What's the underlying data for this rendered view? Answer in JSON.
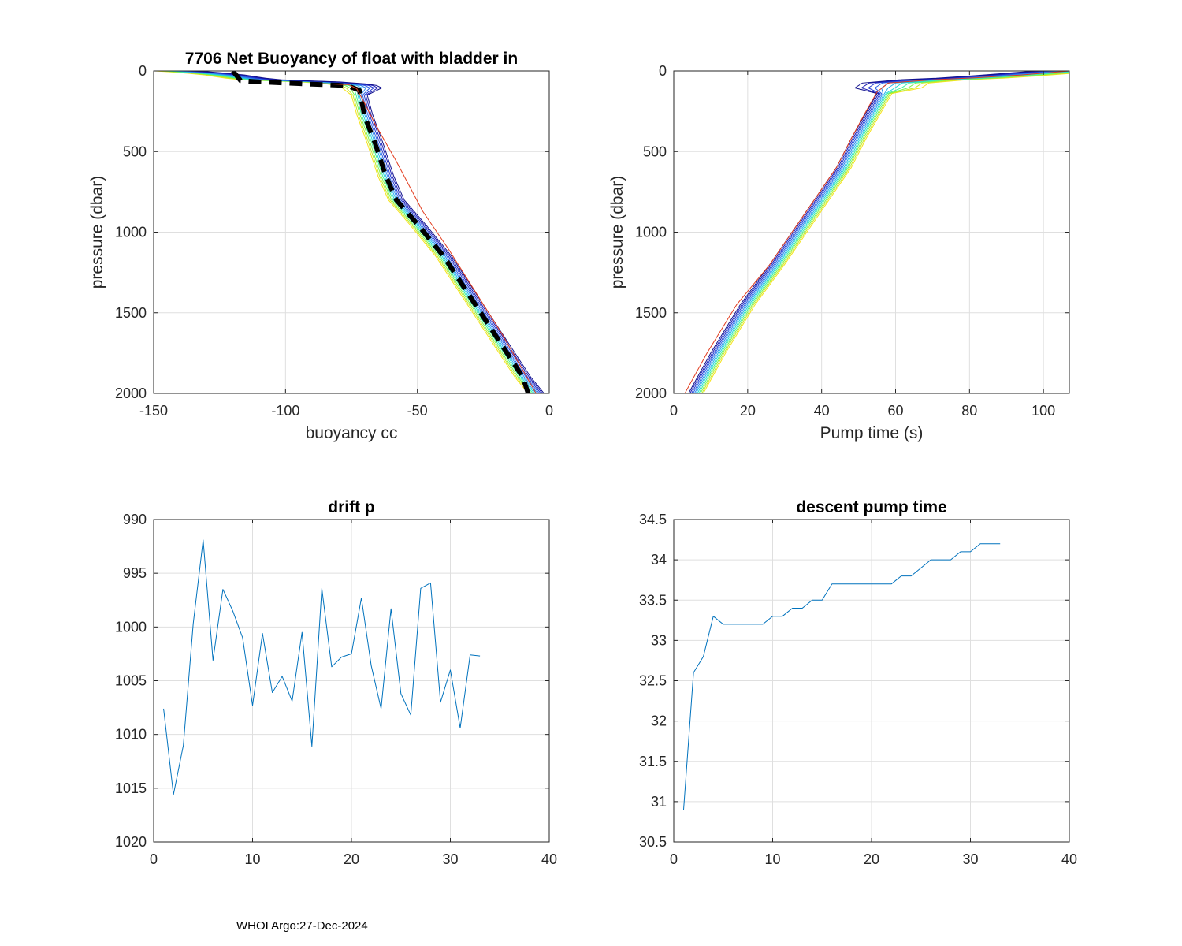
{
  "footer": "WHOI Argo:27-Dec-2024",
  "chart_data": [
    {
      "id": "buoyancy",
      "type": "line",
      "title": "7706 Net Buoyancy of float with bladder in",
      "xlabel": "buoyancy cc",
      "ylabel": "pressure (dbar)",
      "xlim": [
        -150,
        0
      ],
      "ylim": [
        0,
        2000
      ],
      "y_reversed": true,
      "xticks": [
        -150,
        -100,
        -50,
        0
      ],
      "yticks": [
        0,
        500,
        1000,
        1500,
        2000
      ],
      "grid": true,
      "base_profile": {
        "x": [
          -145,
          -140,
          -132,
          -126,
          -122,
          -118,
          -112,
          -100,
          -90,
          -80,
          -76,
          -74,
          -72,
          -70,
          -66,
          -62,
          -58,
          -50,
          -40,
          -30,
          -20,
          -10,
          -5
        ],
        "y": [
          0,
          5,
          15,
          25,
          35,
          45,
          55,
          62,
          68,
          80,
          90,
          105,
          150,
          270,
          450,
          650,
          800,
          950,
          1150,
          1400,
          1650,
          1900,
          2000
        ]
      },
      "series": [
        {
          "name": "mean (black dashed)",
          "color": "#000000",
          "style": "dashed",
          "width": 6,
          "x": [
            -120,
            -117,
            -110,
            -100,
            -90,
            -80,
            -76,
            -72,
            -70,
            -66,
            -62,
            -58,
            -50,
            -40,
            -30,
            -20,
            -10,
            -8
          ],
          "y": [
            0,
            60,
            68,
            75,
            82,
            88,
            95,
            120,
            280,
            450,
            650,
            800,
            950,
            1150,
            1400,
            1650,
            1900,
            2000
          ]
        },
        {
          "name": "profile red",
          "color": "#e23c1e",
          "style": "solid",
          "width": 1,
          "x": [
            -86,
            -76,
            -73,
            -70,
            -66,
            -58,
            -48,
            -38,
            -28,
            -18,
            -5
          ],
          "y": [
            78,
            85,
            110,
            200,
            330,
            560,
            870,
            1110,
            1370,
            1630,
            2000
          ]
        }
      ],
      "ensemble_colors": [
        "#f5e21a",
        "#c2ec28",
        "#7ff24a",
        "#3fefa0",
        "#22d8d8",
        "#27b2ec",
        "#2d8cf0",
        "#2a62e6",
        "#223ad0",
        "#1a1ab4",
        "#10108c"
      ]
    },
    {
      "id": "pumptime",
      "type": "line",
      "title": "",
      "xlabel": "Pump time (s)",
      "ylabel": "pressure (dbar)",
      "xlim": [
        0,
        107
      ],
      "ylim": [
        0,
        2000
      ],
      "y_reversed": true,
      "xticks": [
        0,
        20,
        40,
        60,
        80,
        100
      ],
      "yticks": [
        0,
        500,
        1000,
        1500,
        2000
      ],
      "grid": true,
      "base_profile": {
        "x": [
          6,
          12,
          20,
          28,
          34,
          40,
          46,
          50,
          54,
          57,
          58,
          60,
          70,
          80,
          90,
          100,
          107
        ],
        "y": [
          2000,
          1750,
          1450,
          1200,
          1000,
          800,
          600,
          420,
          260,
          140,
          105,
          75,
          55,
          45,
          30,
          12,
          0
        ]
      },
      "series": [
        {
          "name": "profile red",
          "color": "#e23c1e",
          "style": "solid",
          "width": 1,
          "x": [
            3,
            9,
            17,
            26,
            32,
            38,
            44,
            48,
            52,
            55,
            58,
            70,
            82,
            94,
            107
          ],
          "y": [
            2000,
            1750,
            1450,
            1200,
            1000,
            800,
            600,
            420,
            250,
            130,
            75,
            55,
            42,
            25,
            0
          ]
        }
      ],
      "ensemble_colors": [
        "#f5e21a",
        "#c2ec28",
        "#7ff24a",
        "#3fefa0",
        "#22d8d8",
        "#27b2ec",
        "#2d8cf0",
        "#2a62e6",
        "#223ad0",
        "#1a1ab4",
        "#10108c"
      ]
    },
    {
      "id": "driftp",
      "type": "line",
      "title": "drift p",
      "xlabel": "",
      "ylabel": "",
      "xlim": [
        0,
        40
      ],
      "ylim": [
        990,
        1020
      ],
      "y_reversed": true,
      "xticks": [
        0,
        10,
        20,
        30,
        40
      ],
      "yticks": [
        990,
        995,
        1000,
        1005,
        1010,
        1015,
        1020
      ],
      "grid": true,
      "series": [
        {
          "name": "drift p",
          "color": "#0072bd",
          "style": "solid",
          "width": 1,
          "x": [
            1,
            2,
            3,
            4,
            5,
            6,
            7,
            8,
            9,
            10,
            11,
            12,
            13,
            14,
            15,
            16,
            17,
            18,
            19,
            20,
            21,
            22,
            23,
            24,
            25,
            26,
            27,
            28,
            29,
            30,
            31,
            32,
            33
          ],
          "y": [
            1007.6,
            1015.6,
            1011.0,
            999.7,
            991.9,
            1003.1,
            996.5,
            998.5,
            1001.0,
            1007.3,
            1000.6,
            1006.1,
            1004.6,
            1006.9,
            1000.5,
            1011.1,
            996.4,
            1003.7,
            1002.8,
            1002.5,
            997.3,
            1003.6,
            1007.6,
            998.3,
            1006.2,
            1008.2,
            996.4,
            995.9,
            1007.0,
            1004.0,
            1009.4,
            1002.6,
            1002.7
          ]
        }
      ]
    },
    {
      "id": "descentpump",
      "type": "line",
      "title": "descent pump time",
      "xlabel": "",
      "ylabel": "",
      "xlim": [
        0,
        40
      ],
      "ylim": [
        30.5,
        34.5
      ],
      "y_reversed": false,
      "xticks": [
        0,
        10,
        20,
        30,
        40
      ],
      "yticks": [
        30.5,
        31,
        31.5,
        32,
        32.5,
        33,
        33.5,
        34,
        34.5
      ],
      "grid": true,
      "series": [
        {
          "name": "descent pump time",
          "color": "#0072bd",
          "style": "solid",
          "width": 1,
          "x": [
            1,
            2,
            3,
            4,
            5,
            6,
            7,
            8,
            9,
            10,
            11,
            12,
            13,
            14,
            15,
            16,
            17,
            18,
            19,
            20,
            21,
            22,
            23,
            24,
            25,
            26,
            27,
            28,
            29,
            30,
            31,
            32,
            33
          ],
          "y": [
            30.9,
            32.6,
            32.8,
            33.3,
            33.2,
            33.2,
            33.2,
            33.2,
            33.2,
            33.3,
            33.3,
            33.4,
            33.4,
            33.5,
            33.5,
            33.7,
            33.7,
            33.7,
            33.7,
            33.7,
            33.7,
            33.7,
            33.8,
            33.8,
            33.9,
            34.0,
            34.0,
            34.0,
            34.1,
            34.1,
            34.2,
            34.2,
            34.2
          ]
        }
      ]
    }
  ]
}
